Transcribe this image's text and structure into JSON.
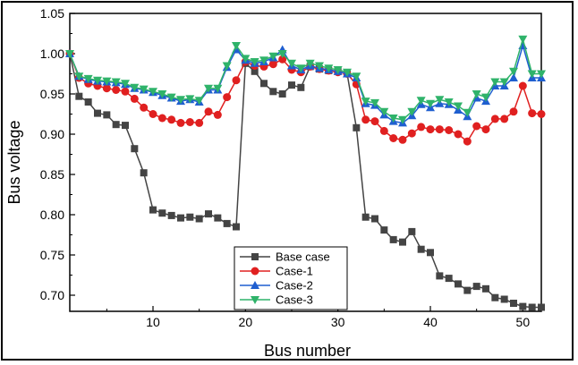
{
  "chart_data": {
    "type": "line",
    "xlabel": "Bus number",
    "ylabel": "Bus voltage",
    "xlim": [
      1,
      52
    ],
    "ylim": [
      0.68,
      1.05
    ],
    "xticks": [
      10,
      20,
      30,
      40,
      50
    ],
    "yticks": [
      0.7,
      0.75,
      0.8,
      0.85,
      0.9,
      0.95,
      1.0,
      1.05
    ],
    "grid": false,
    "legend_position": "bottom-center",
    "x": [
      1,
      2,
      3,
      4,
      5,
      6,
      7,
      8,
      9,
      10,
      11,
      12,
      13,
      14,
      15,
      16,
      17,
      18,
      19,
      20,
      21,
      22,
      23,
      24,
      25,
      26,
      27,
      28,
      29,
      30,
      31,
      32,
      33,
      34,
      35,
      36,
      37,
      38,
      39,
      40,
      41,
      42,
      43,
      44,
      45,
      46,
      47,
      48,
      49,
      50,
      51,
      52
    ],
    "series": [
      {
        "name": "Base case",
        "color": "#444444",
        "marker": "square",
        "values": [
          1.0,
          0.947,
          0.94,
          0.926,
          0.924,
          0.912,
          0.911,
          0.882,
          0.852,
          0.806,
          0.802,
          0.799,
          0.796,
          0.797,
          0.795,
          0.801,
          0.796,
          0.789,
          0.785,
          0.988,
          0.978,
          0.963,
          0.953,
          0.95,
          0.961,
          0.958,
          0.984,
          0.981,
          0.979,
          0.978,
          0.975,
          0.908,
          0.797,
          0.795,
          0.781,
          0.769,
          0.766,
          0.779,
          0.757,
          0.753,
          0.724,
          0.721,
          0.714,
          0.706,
          0.711,
          0.708,
          0.697,
          0.695,
          0.69,
          0.686,
          0.685,
          0.685
        ]
      },
      {
        "name": "Case-1",
        "color": "#e02020",
        "marker": "circle",
        "values": [
          1.0,
          0.97,
          0.963,
          0.96,
          0.957,
          0.955,
          0.953,
          0.944,
          0.933,
          0.925,
          0.92,
          0.918,
          0.914,
          0.915,
          0.914,
          0.928,
          0.924,
          0.946,
          0.967,
          0.99,
          0.985,
          0.984,
          0.987,
          0.993,
          0.98,
          0.977,
          0.984,
          0.981,
          0.979,
          0.977,
          0.975,
          0.962,
          0.918,
          0.916,
          0.904,
          0.895,
          0.893,
          0.901,
          0.909,
          0.906,
          0.906,
          0.905,
          0.9,
          0.891,
          0.91,
          0.906,
          0.919,
          0.919,
          0.928,
          0.96,
          0.926,
          0.925
        ]
      },
      {
        "name": "Case-2",
        "color": "#1f5fd0",
        "marker": "triangle-up",
        "values": [
          1.0,
          0.972,
          0.968,
          0.966,
          0.965,
          0.964,
          0.962,
          0.957,
          0.955,
          0.952,
          0.948,
          0.945,
          0.941,
          0.943,
          0.94,
          0.955,
          0.955,
          0.983,
          1.005,
          0.992,
          0.988,
          0.99,
          0.995,
          1.005,
          0.985,
          0.98,
          0.985,
          0.982,
          0.98,
          0.978,
          0.975,
          0.97,
          0.938,
          0.936,
          0.924,
          0.916,
          0.914,
          0.923,
          0.937,
          0.933,
          0.938,
          0.937,
          0.93,
          0.922,
          0.945,
          0.941,
          0.96,
          0.96,
          0.97,
          1.01,
          0.97,
          0.97
        ]
      },
      {
        "name": "Case-3",
        "color": "#2fb36a",
        "marker": "triangle-down",
        "values": [
          1.0,
          0.972,
          0.969,
          0.967,
          0.966,
          0.965,
          0.963,
          0.958,
          0.956,
          0.953,
          0.95,
          0.946,
          0.943,
          0.944,
          0.942,
          0.957,
          0.957,
          0.985,
          1.01,
          0.994,
          0.99,
          0.992,
          0.997,
          1.0,
          0.988,
          0.982,
          0.988,
          0.985,
          0.982,
          0.98,
          0.977,
          0.972,
          0.941,
          0.939,
          0.928,
          0.92,
          0.918,
          0.928,
          0.942,
          0.938,
          0.943,
          0.94,
          0.935,
          0.927,
          0.95,
          0.946,
          0.965,
          0.965,
          0.978,
          1.018,
          0.975,
          0.975
        ]
      }
    ]
  }
}
